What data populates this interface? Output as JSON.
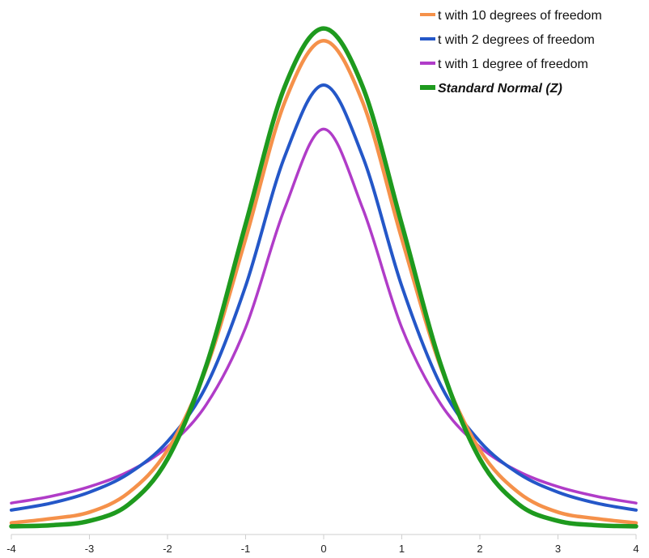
{
  "chart_data": {
    "type": "line",
    "title": "",
    "xlabel": "",
    "ylabel": "",
    "xlim": [
      -4,
      4
    ],
    "ylim": [
      0,
      0.41
    ],
    "x_ticks": [
      -4,
      -3,
      -2,
      -1,
      0,
      1,
      2,
      3,
      4
    ],
    "x_tick_labels": [
      "-4",
      "-3",
      "-2",
      "-1",
      "0",
      "1",
      "2",
      "3",
      "4"
    ],
    "grid": false,
    "legend_position": "top-right",
    "series": [
      {
        "name": "t with 10 degrees of freedom",
        "color": "#F5914A",
        "x": [
          -4,
          -3.5,
          -3,
          -2.5,
          -2,
          -1.5,
          -1,
          -0.5,
          0,
          0.5,
          1,
          1.5,
          2,
          2.5,
          3,
          3.5,
          4
        ],
        "y": [
          0.0028,
          0.0062,
          0.0114,
          0.0269,
          0.0611,
          0.1274,
          0.2304,
          0.3397,
          0.3891,
          0.3397,
          0.2304,
          0.1274,
          0.0611,
          0.0269,
          0.0114,
          0.0062,
          0.0028
        ]
      },
      {
        "name": "t with 2 degrees of freedom",
        "color": "#2457C8",
        "x": [
          -4,
          -3.5,
          -3,
          -2.5,
          -2,
          -1.5,
          -1,
          -0.5,
          0,
          0.5,
          1,
          1.5,
          2,
          2.5,
          3,
          3.5,
          4
        ],
        "y": [
          0.0131,
          0.0185,
          0.0274,
          0.0422,
          0.068,
          0.113,
          0.1925,
          0.2962,
          0.3536,
          0.2962,
          0.1925,
          0.113,
          0.068,
          0.0422,
          0.0274,
          0.0185,
          0.0131
        ]
      },
      {
        "name": "t with 1 degree of freedom",
        "color": "#B03CC8",
        "x": [
          -4,
          -3.5,
          -3,
          -2.5,
          -2,
          -1.5,
          -1,
          -0.5,
          0,
          0.5,
          1,
          1.5,
          2,
          2.5,
          3,
          3.5,
          4
        ],
        "y": [
          0.0187,
          0.024,
          0.0318,
          0.0439,
          0.0637,
          0.0979,
          0.1592,
          0.2546,
          0.3183,
          0.2546,
          0.1592,
          0.0979,
          0.0637,
          0.0439,
          0.0318,
          0.024,
          0.0187
        ]
      },
      {
        "name": "Standard Normal (Z)",
        "color": "#1E9A1E",
        "x": [
          -4,
          -3.5,
          -3,
          -2.5,
          -2,
          -1.5,
          -1,
          -0.5,
          0,
          0.5,
          1,
          1.5,
          2,
          2.5,
          3,
          3.5,
          4
        ],
        "y": [
          0.0001,
          0.0009,
          0.0044,
          0.0175,
          0.054,
          0.1295,
          0.242,
          0.3521,
          0.3989,
          0.3521,
          0.242,
          0.1295,
          0.054,
          0.0175,
          0.0044,
          0.0009,
          0.0001
        ]
      }
    ]
  }
}
